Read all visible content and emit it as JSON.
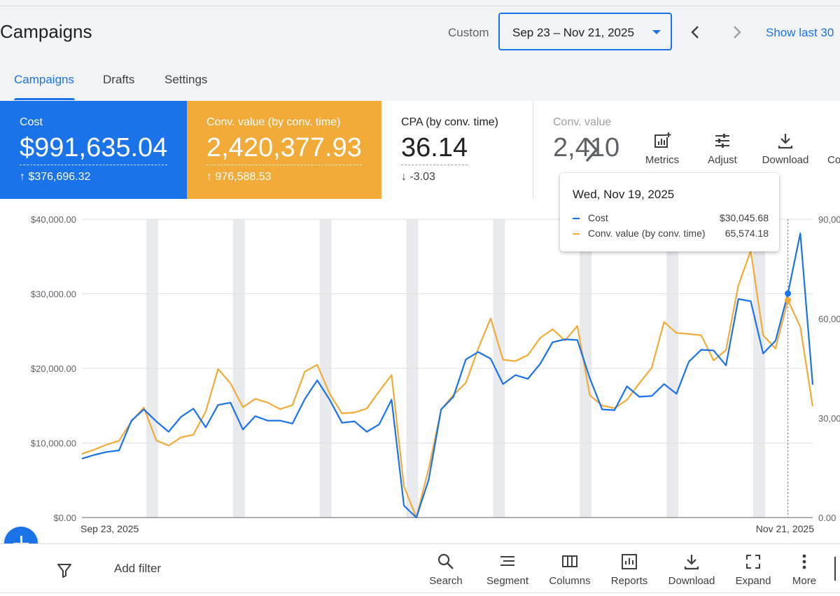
{
  "header": {
    "title": "Campaigns",
    "custom_label": "Custom",
    "date_range": "Sep 23 – Nov 21, 2025",
    "show_last": "Show last 30"
  },
  "tabs": [
    {
      "label": "Campaigns",
      "active": true
    },
    {
      "label": "Drafts",
      "active": false
    },
    {
      "label": "Settings",
      "active": false
    }
  ],
  "scorecards": [
    {
      "label": "Cost",
      "value": "$991,635.04",
      "delta": "↑ $376,696.32",
      "color": "#1a73e8"
    },
    {
      "label": "Conv. value (by conv. time)",
      "value": "2,420,377.93",
      "delta": "↑ 976,588.53",
      "color": "#f2ab39"
    },
    {
      "label": "CPA (by conv. time)",
      "value": "36.14",
      "delta": "↓ -3.03"
    },
    {
      "label": "Conv. value",
      "value": "2,410,"
    }
  ],
  "card_tools": [
    {
      "label": "Metrics",
      "icon": "metrics-icon"
    },
    {
      "label": "Adjust",
      "icon": "adjust-icon"
    },
    {
      "label": "Download",
      "icon": "download-icon"
    },
    {
      "label": "Co",
      "icon": "columns-icon"
    }
  ],
  "tooltip": {
    "date": "Wed, Nov 19, 2025",
    "rows": [
      {
        "name": "Cost",
        "value": "$30,045.68",
        "color": "#1a73e8"
      },
      {
        "name": "Conv. value (by conv. time)",
        "value": "65,574.18",
        "color": "#f2ab39"
      }
    ]
  },
  "chart_data": {
    "type": "line",
    "x_start_label": "Sep 23, 2025",
    "x_end_label": "Nov 21, 2025",
    "left_axis_ticks": [
      "$0.00",
      "$10,000.00",
      "$20,000.00",
      "$30,000.00",
      "$40,000.00"
    ],
    "right_axis_ticks": [
      "0.00",
      "30,00",
      "60,00",
      "90,00"
    ],
    "ylim_left": [
      0,
      40000
    ],
    "ylim_right": [
      0,
      90000
    ],
    "series": [
      {
        "name": "Cost",
        "axis": "left",
        "color": "#1a73e8",
        "values": [
          7900,
          8400,
          8800,
          9000,
          13000,
          14500,
          12900,
          11500,
          13500,
          14600,
          12100,
          15100,
          15400,
          11800,
          13600,
          13000,
          13000,
          12600,
          15900,
          18400,
          15800,
          12700,
          12900,
          11500,
          12500,
          15800,
          1600,
          0,
          5100,
          14500,
          16200,
          21200,
          22200,
          21300,
          17900,
          19100,
          18600,
          20600,
          23500,
          23900,
          23800,
          18700,
          14500,
          14400,
          17600,
          16200,
          16300,
          17900,
          16600,
          20900,
          22500,
          22400,
          20400,
          29300,
          29000,
          22000,
          23700,
          30046,
          38100,
          17800
        ]
      },
      {
        "name": "Conv. value (by conv. time)",
        "axis": "right",
        "color": "#f2ab39",
        "values": [
          19200,
          20500,
          22000,
          23200,
          29000,
          33200,
          23300,
          21700,
          24200,
          25000,
          32000,
          44800,
          40500,
          33300,
          35800,
          34700,
          32700,
          33900,
          44000,
          46100,
          37400,
          31400,
          31700,
          32900,
          38100,
          43000,
          9400,
          0,
          14800,
          32600,
          37000,
          40600,
          51000,
          60100,
          47600,
          47200,
          49000,
          54200,
          56800,
          53400,
          57800,
          36900,
          33800,
          33000,
          35500,
          40500,
          45200,
          59000,
          55700,
          55400,
          55000,
          47400,
          50500,
          70000,
          80500,
          55000,
          51000,
          65574,
          57500,
          33500
        ]
      }
    ],
    "highlight_index": 57,
    "weekend_bands": [
      5,
      12,
      19,
      26,
      33,
      40,
      47,
      54
    ]
  },
  "bottom_bar": {
    "add_filter": "Add filter",
    "tools": [
      {
        "label": "Search",
        "icon": "search-icon"
      },
      {
        "label": "Segment",
        "icon": "segment-icon"
      },
      {
        "label": "Columns",
        "icon": "columns-icon"
      },
      {
        "label": "Reports",
        "icon": "reports-icon"
      },
      {
        "label": "Download",
        "icon": "download-icon"
      },
      {
        "label": "Expand",
        "icon": "expand-icon"
      },
      {
        "label": "More",
        "icon": "more-vert-icon"
      }
    ]
  }
}
